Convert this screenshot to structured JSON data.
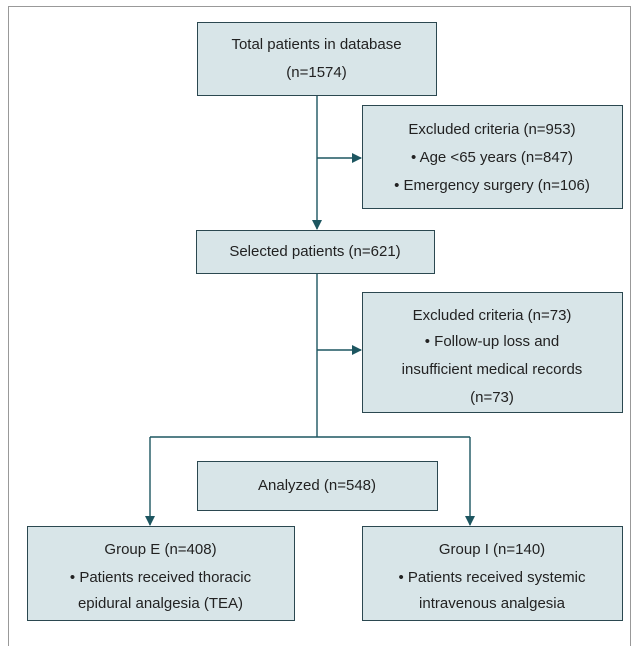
{
  "nodes": [
    {
      "lines": [
        "Total patients in database",
        "(n=1574)"
      ]
    },
    {
      "lines": [
        "Excluded criteria (n=953)",
        "• Age <65 years (n=847)",
        "• Emergency surgery (n=106)"
      ]
    },
    {
      "lines": [
        "Selected patients (n=621)"
      ]
    },
    {
      "lines": [
        "Excluded criteria (n=73)",
        "• Follow-up loss and",
        "insufficient medical records",
        "(n=73)"
      ]
    },
    {
      "lines": [
        "Analyzed (n=548)"
      ]
    },
    {
      "lines": [
        "Group E (n=408)",
        "• Patients received thoracic",
        "epidural analgesia (TEA)"
      ]
    },
    {
      "lines": [
        "Group I (n=140)",
        "• Patients received systemic",
        "intravenous analgesia"
      ]
    }
  ]
}
